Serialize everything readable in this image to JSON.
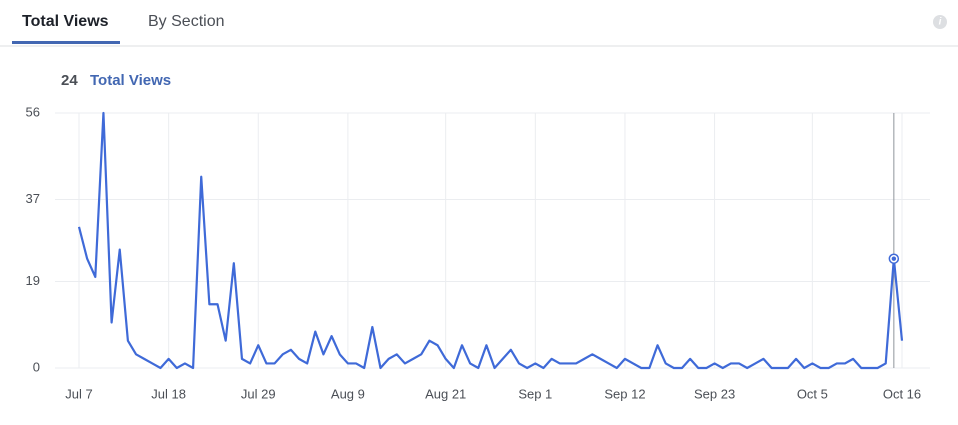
{
  "tabs": [
    "Total Views",
    "By Section"
  ],
  "summary": {
    "value": 24,
    "label": "Total Views"
  },
  "chart_data": {
    "type": "line",
    "categories": [
      "Jul 7",
      null,
      null,
      null,
      null,
      null,
      null,
      null,
      null,
      null,
      null,
      "Jul 18",
      null,
      null,
      null,
      null,
      null,
      null,
      null,
      null,
      null,
      null,
      "Jul 29",
      null,
      null,
      null,
      null,
      null,
      null,
      null,
      null,
      null,
      null,
      "Aug 9",
      null,
      null,
      null,
      null,
      null,
      null,
      null,
      null,
      null,
      null,
      null,
      "Aug 21",
      null,
      null,
      null,
      null,
      null,
      null,
      null,
      null,
      null,
      null,
      "Sep 1",
      null,
      null,
      null,
      null,
      null,
      null,
      null,
      null,
      null,
      null,
      "Sep 12",
      null,
      null,
      null,
      null,
      null,
      null,
      null,
      null,
      null,
      null,
      "Sep 23",
      null,
      null,
      null,
      null,
      null,
      null,
      null,
      null,
      null,
      null,
      null,
      "Oct 5",
      null,
      null,
      null,
      null,
      null,
      null,
      null,
      null,
      null,
      null,
      "Oct 16"
    ],
    "values": [
      31,
      24,
      20,
      56,
      10,
      26,
      6,
      3,
      2,
      1,
      0,
      2,
      0,
      1,
      0,
      42,
      14,
      14,
      6,
      23,
      2,
      1,
      5,
      1,
      1,
      3,
      4,
      2,
      1,
      8,
      3,
      7,
      3,
      1,
      1,
      0,
      9,
      0,
      2,
      3,
      1,
      2,
      3,
      6,
      5,
      2,
      0,
      5,
      1,
      0,
      5,
      0,
      2,
      4,
      1,
      0,
      1,
      0,
      2,
      1,
      1,
      1,
      2,
      3,
      2,
      1,
      0,
      2,
      1,
      0,
      0,
      5,
      1,
      0,
      0,
      2,
      0,
      0,
      1,
      0,
      1,
      1,
      0,
      1,
      2,
      0,
      0,
      0,
      2,
      0,
      1,
      0,
      0,
      1,
      1,
      2,
      0,
      0,
      0,
      1,
      24,
      6
    ],
    "color": "#3f6ad8",
    "ylim": [
      0,
      56
    ],
    "yticks": [
      0,
      19,
      37,
      56
    ],
    "grid": true,
    "highlighted_index": 100
  }
}
